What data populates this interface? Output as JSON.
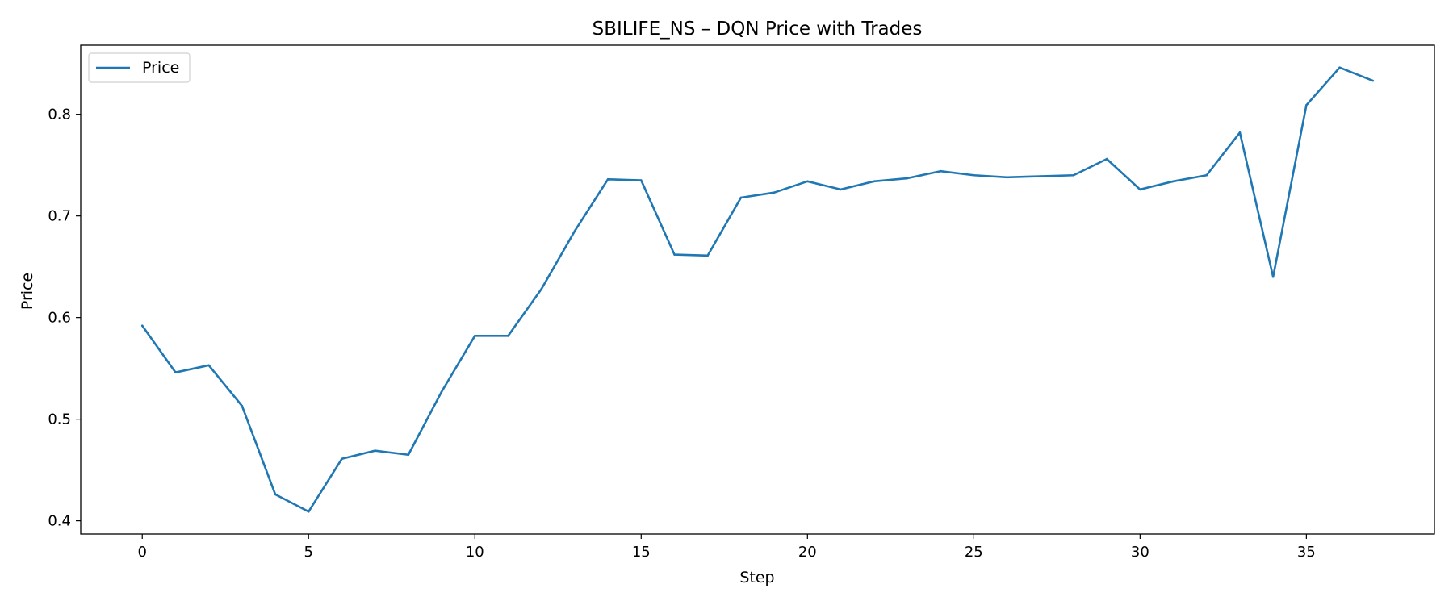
{
  "chart_data": {
    "type": "line",
    "title": "SBILIFE_NS – DQN Price with Trades",
    "xlabel": "Step",
    "ylabel": "Price",
    "xlim": [
      -1.85,
      38.85
    ],
    "ylim": [
      0.387,
      0.868
    ],
    "xticks": [
      0,
      5,
      10,
      15,
      20,
      25,
      30,
      35
    ],
    "yticks": [
      0.4,
      0.5,
      0.6,
      0.7,
      0.8
    ],
    "grid": false,
    "legend": "top-left",
    "series": [
      {
        "name": "Price",
        "color": "#1f77b4",
        "x": [
          0,
          1,
          2,
          3,
          4,
          5,
          6,
          7,
          8,
          9,
          10,
          11,
          12,
          13,
          14,
          15,
          16,
          17,
          18,
          19,
          20,
          21,
          22,
          23,
          24,
          25,
          26,
          27,
          28,
          29,
          30,
          31,
          32,
          33,
          34,
          35,
          36,
          37
        ],
        "y": [
          0.592,
          0.546,
          0.553,
          0.513,
          0.426,
          0.409,
          0.461,
          0.469,
          0.465,
          0.527,
          0.582,
          0.582,
          0.628,
          0.685,
          0.736,
          0.735,
          0.662,
          0.661,
          0.718,
          0.723,
          0.734,
          0.726,
          0.734,
          0.737,
          0.744,
          0.74,
          0.738,
          0.739,
          0.74,
          0.756,
          0.726,
          0.734,
          0.74,
          0.782,
          0.64,
          0.809,
          0.846,
          0.833
        ]
      }
    ]
  }
}
